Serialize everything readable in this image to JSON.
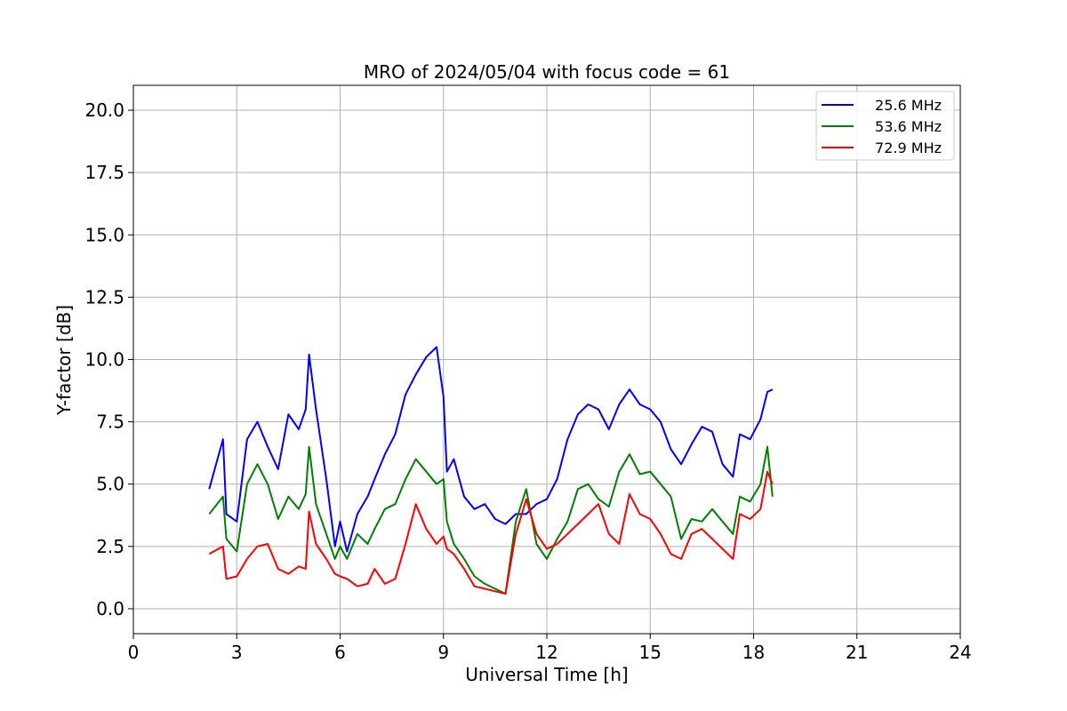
{
  "chart_data": {
    "type": "line",
    "title": "MRO of 2024/05/04 with focus code = 61",
    "xlabel": "Universal Time [h]",
    "ylabel": "Y-factor [dB]",
    "xlim": [
      0,
      24
    ],
    "ylim": [
      -1,
      21
    ],
    "xticks": [
      0,
      3,
      6,
      9,
      12,
      15,
      18,
      21,
      24
    ],
    "yticks": [
      0.0,
      2.5,
      5.0,
      7.5,
      10.0,
      12.5,
      15.0,
      17.5,
      20.0
    ],
    "ytick_labels": [
      "0.0",
      "2.5",
      "5.0",
      "7.5",
      "10.0",
      "12.5",
      "15.0",
      "17.5",
      "20.0"
    ],
    "grid": true,
    "legend_position": "top-right",
    "series": [
      {
        "name": "25.6 MHz",
        "color": "#0000ff",
        "x": [
          2.2,
          2.6,
          2.7,
          3.0,
          3.3,
          3.6,
          3.9,
          4.2,
          4.5,
          4.8,
          5.0,
          5.1,
          5.3,
          5.6,
          5.85,
          6.0,
          6.2,
          6.5,
          6.8,
          7.0,
          7.3,
          7.6,
          7.9,
          8.2,
          8.5,
          8.8,
          9.0,
          9.1,
          9.3,
          9.6,
          9.9,
          10.2,
          10.5,
          10.8,
          11.1,
          11.4,
          11.7,
          12.0,
          12.3,
          12.6,
          12.9,
          13.2,
          13.5,
          13.8,
          14.1,
          14.4,
          14.7,
          15.0,
          15.3,
          15.6,
          15.9,
          16.2,
          16.5,
          16.8,
          17.1,
          17.4,
          17.6,
          17.9,
          18.2,
          18.4,
          18.55
        ],
        "y": [
          4.8,
          6.8,
          3.8,
          3.5,
          6.8,
          7.5,
          6.5,
          5.6,
          7.8,
          7.2,
          8.0,
          10.2,
          8.0,
          5.2,
          2.5,
          3.5,
          2.3,
          3.8,
          4.5,
          5.2,
          6.2,
          7.0,
          8.6,
          9.4,
          10.1,
          10.5,
          8.5,
          5.5,
          6.0,
          4.5,
          4.0,
          4.2,
          3.6,
          3.4,
          3.8,
          3.8,
          4.2,
          4.4,
          5.2,
          6.8,
          7.8,
          8.2,
          8.0,
          7.2,
          8.2,
          8.8,
          8.2,
          8.0,
          7.5,
          6.4,
          5.8,
          6.6,
          7.3,
          7.1,
          5.8,
          5.3,
          7.0,
          6.8,
          7.6,
          8.7,
          8.8
        ]
      },
      {
        "name": "53.6 MHz",
        "color": "#008000",
        "x": [
          2.2,
          2.6,
          2.7,
          3.0,
          3.3,
          3.6,
          3.9,
          4.2,
          4.5,
          4.8,
          5.0,
          5.1,
          5.3,
          5.6,
          5.85,
          6.0,
          6.2,
          6.5,
          6.8,
          7.0,
          7.3,
          7.6,
          7.9,
          8.2,
          8.5,
          8.8,
          9.0,
          9.1,
          9.3,
          9.6,
          9.9,
          10.2,
          10.5,
          10.8,
          11.1,
          11.4,
          11.7,
          12.0,
          12.3,
          12.6,
          12.9,
          13.2,
          13.5,
          13.8,
          14.1,
          14.4,
          14.7,
          15.0,
          15.3,
          15.6,
          15.9,
          16.2,
          16.5,
          16.8,
          17.1,
          17.4,
          17.6,
          17.9,
          18.2,
          18.4,
          18.55
        ],
        "y": [
          3.8,
          4.5,
          2.8,
          2.3,
          5.0,
          5.8,
          5.0,
          3.6,
          4.5,
          4.0,
          4.6,
          6.5,
          4.2,
          3.0,
          2.0,
          2.5,
          2.0,
          3.0,
          2.6,
          3.2,
          4.0,
          4.2,
          5.2,
          6.0,
          5.5,
          5.0,
          5.2,
          3.5,
          2.6,
          2.0,
          1.3,
          1.0,
          0.8,
          0.6,
          3.5,
          4.8,
          2.6,
          2.0,
          2.8,
          3.5,
          4.8,
          5.0,
          4.4,
          4.1,
          5.5,
          6.2,
          5.4,
          5.5,
          5.0,
          4.5,
          2.8,
          3.6,
          3.5,
          4.0,
          3.5,
          3.0,
          4.5,
          4.3,
          5.0,
          6.5,
          4.5
        ]
      },
      {
        "name": "72.9 MHz",
        "color": "#ff0000",
        "x": [
          2.2,
          2.6,
          2.7,
          3.0,
          3.3,
          3.6,
          3.9,
          4.2,
          4.5,
          4.8,
          5.0,
          5.1,
          5.3,
          5.6,
          5.85,
          6.0,
          6.2,
          6.5,
          6.8,
          7.0,
          7.3,
          7.6,
          7.9,
          8.2,
          8.5,
          8.8,
          9.0,
          9.1,
          9.3,
          9.6,
          9.9,
          10.2,
          10.5,
          10.8,
          11.1,
          11.4,
          11.7,
          12.0,
          12.3,
          12.6,
          12.9,
          13.2,
          13.5,
          13.8,
          14.1,
          14.4,
          14.7,
          15.0,
          15.3,
          15.6,
          15.9,
          16.2,
          16.5,
          16.8,
          17.1,
          17.4,
          17.6,
          17.9,
          18.2,
          18.4,
          18.55
        ],
        "y": [
          2.2,
          2.5,
          1.2,
          1.3,
          2.0,
          2.5,
          2.6,
          1.6,
          1.4,
          1.7,
          1.6,
          3.9,
          2.6,
          2.0,
          1.4,
          1.3,
          1.2,
          0.9,
          1.0,
          1.6,
          1.0,
          1.2,
          2.6,
          4.2,
          3.2,
          2.6,
          2.9,
          2.4,
          2.2,
          1.6,
          0.9,
          0.8,
          0.7,
          0.6,
          3.0,
          4.4,
          3.0,
          2.4,
          2.6,
          3.0,
          3.4,
          3.8,
          4.2,
          3.0,
          2.6,
          4.6,
          3.8,
          3.6,
          3.0,
          2.2,
          2.0,
          3.0,
          3.2,
          2.8,
          2.4,
          2.0,
          3.8,
          3.6,
          4.0,
          5.5,
          5.0
        ]
      }
    ]
  }
}
